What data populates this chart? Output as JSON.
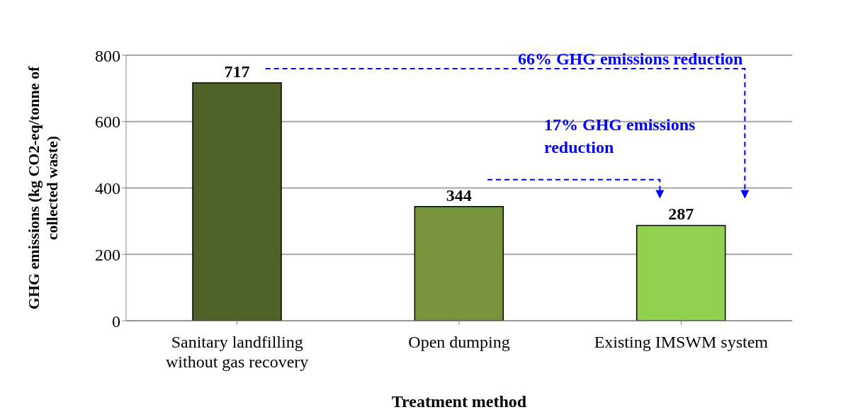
{
  "chart_data": {
    "type": "bar",
    "categories": [
      "Sanitary landfilling without gas recovery",
      "Open dumping",
      "Existing IMSWM system"
    ],
    "values": [
      717,
      344,
      287
    ],
    "colors": [
      "#4f6228",
      "#77933c",
      "#92d050"
    ],
    "ylim": [
      0,
      800
    ],
    "yticks": [
      0,
      200,
      400,
      600,
      800
    ],
    "grid": "y",
    "data_labels": true,
    "xlabel": "Treatment method",
    "ylabel": "GHG emissions (kg CO2-eq/tonne of collected waste)",
    "annotations": [
      "66% GHG emissions reduction",
      "17% GHG emissions reduction"
    ]
  }
}
